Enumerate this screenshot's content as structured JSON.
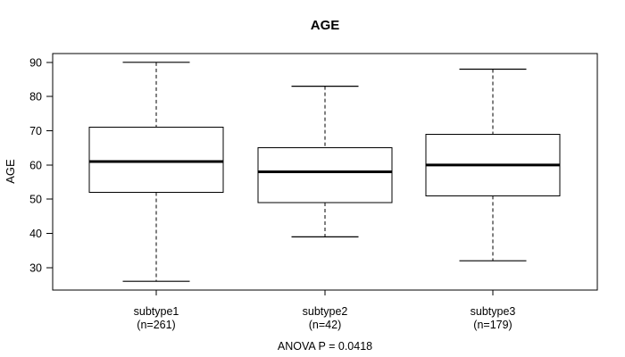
{
  "page": {
    "background_color": "#ffffff",
    "line_color": "#000000"
  },
  "chart_data": {
    "type": "boxplot",
    "title": "AGE",
    "xlabel": "",
    "ylabel": "AGE",
    "annotation": "ANOVA P = 0.0418",
    "grid": false,
    "legend": "none",
    "yticks": [
      30,
      40,
      50,
      60,
      70,
      80,
      90
    ],
    "ylim": [
      23.44,
      92.56
    ],
    "categories": [
      "subtype1",
      "subtype2",
      "subtype3"
    ],
    "category_sublabels": [
      "(n=261)",
      "(n=42)",
      "(n=179)"
    ],
    "series": [
      {
        "name": "subtype1",
        "n": 261,
        "min": 26,
        "q1": 52,
        "median": 61,
        "q3": 71,
        "max": 90
      },
      {
        "name": "subtype2",
        "n": 42,
        "min": 39,
        "q1": 49,
        "median": 58,
        "q3": 65,
        "max": 83
      },
      {
        "name": "subtype3",
        "n": 179,
        "min": 32,
        "q1": 51,
        "median": 60,
        "q3": 69,
        "max": 88
      }
    ]
  }
}
